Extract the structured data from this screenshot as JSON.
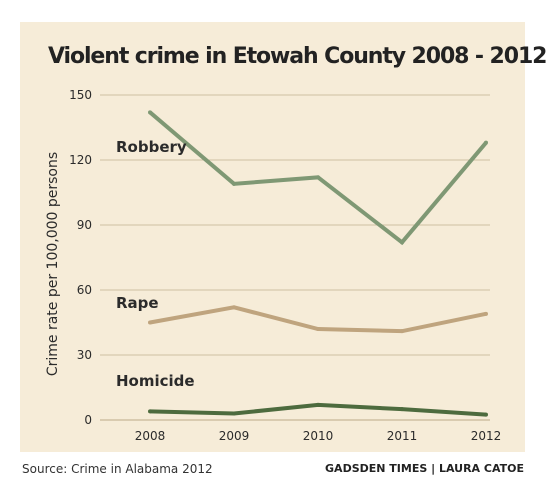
{
  "chart_data": {
    "type": "line",
    "title": "Violent crime in Etowah County 2008 - 2012",
    "ylabel": "Crime rate per 100,000 persons",
    "xlabel": "",
    "x": [
      "2008",
      "2009",
      "2010",
      "2011",
      "2012"
    ],
    "y_ticks": [
      "150",
      "120",
      "90",
      "60",
      "30",
      "0"
    ],
    "ylim": [
      0,
      150
    ],
    "grid": true,
    "series": [
      {
        "name": "Robbery",
        "values": [
          142,
          109,
          112,
          82,
          128
        ],
        "color": "#7f9874"
      },
      {
        "name": "Rape",
        "values": [
          45,
          52,
          42,
          41,
          49
        ],
        "color": "#bfa47e"
      },
      {
        "name": "Homicide",
        "values": [
          4,
          3,
          7,
          5,
          2.5
        ],
        "color": "#4d6b3e"
      }
    ]
  },
  "source": "Source: Crime in Alabama 2012",
  "credit": "GADSDEN TIMES | LAURA CATOE",
  "colors": {
    "panel_background": "#f6ecd8",
    "gridline": "#cfc0a2"
  }
}
